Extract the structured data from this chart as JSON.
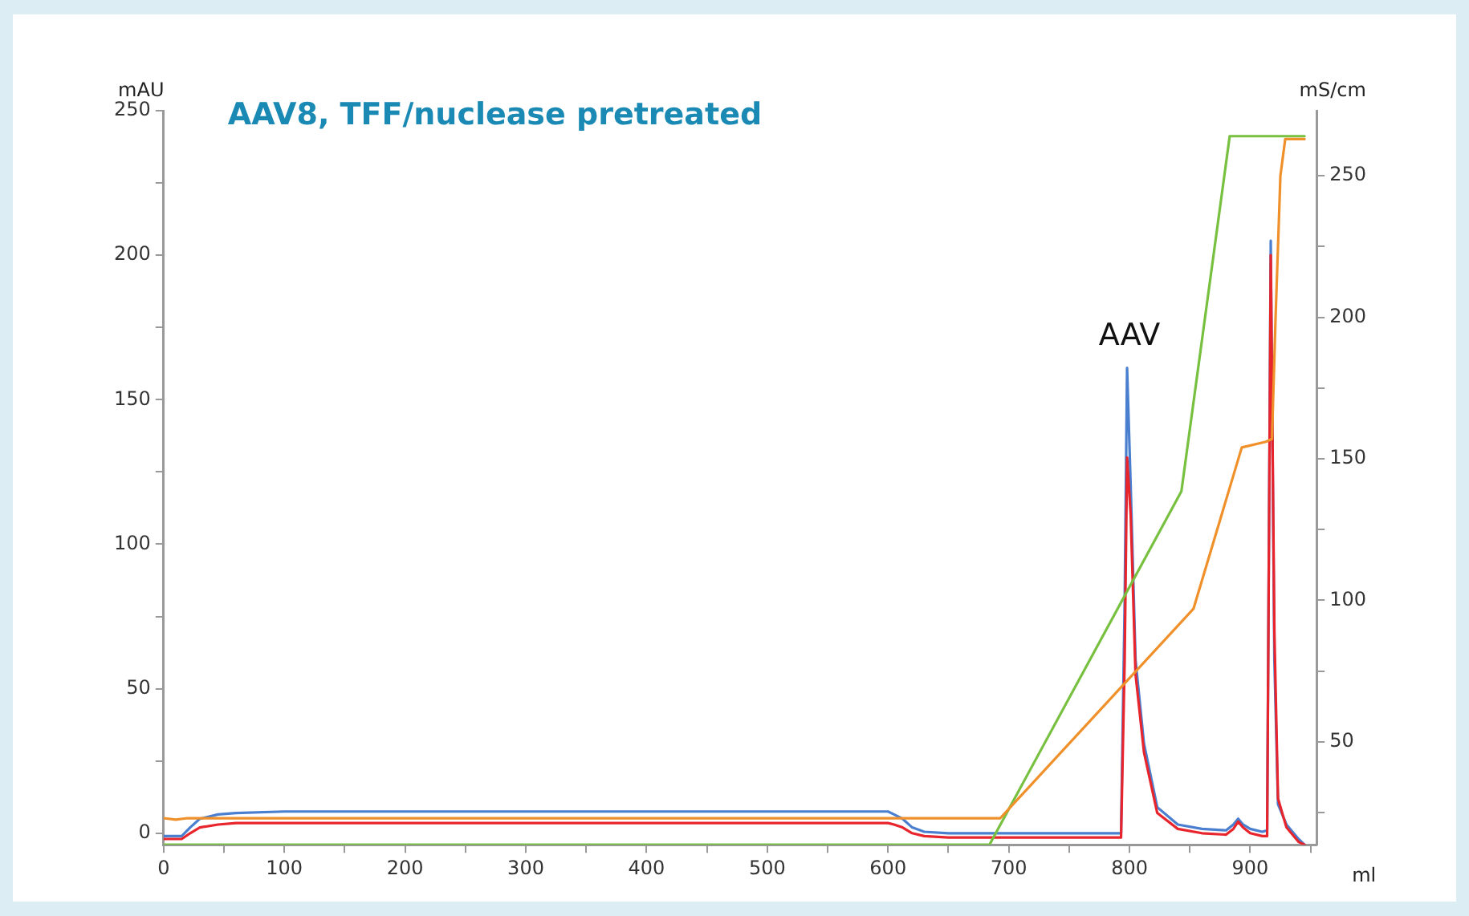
{
  "chart_data": {
    "type": "line",
    "title": "AAV8, TFF/nuclease pretreated",
    "xlabel": "ml",
    "ylabel": "mAU",
    "y2label": "mS/cm",
    "annotations": [
      {
        "text": "AAV",
        "x": 800,
        "y": 161
      }
    ],
    "xlim": [
      0,
      955
    ],
    "xticks": [
      0,
      {
        "value": 50,
        "label": null
      },
      100,
      {
        "value": 150,
        "label": null
      },
      200,
      {
        "value": 250,
        "label": null
      },
      300,
      {
        "value": 350,
        "label": null
      },
      400,
      {
        "value": 450,
        "label": null
      },
      500,
      {
        "value": 550,
        "label": null
      },
      600,
      {
        "value": 650,
        "label": null
      },
      700,
      {
        "value": 750,
        "label": null
      },
      800,
      {
        "value": 850,
        "label": null
      },
      900,
      {
        "value": 950,
        "label": null
      }
    ],
    "ylim": [
      -4,
      250
    ],
    "yticks": [
      0,
      {
        "value": 25,
        "label": null
      },
      50,
      {
        "value": 75,
        "label": null
      },
      100,
      {
        "value": 125,
        "label": null
      },
      150,
      {
        "value": 175,
        "label": null
      },
      200,
      {
        "value": 225,
        "label": null
      },
      250
    ],
    "y2lim": [
      13.6,
      273
    ],
    "y2ticks": [
      {
        "value": 25,
        "label": null
      },
      50,
      {
        "value": 75,
        "label": null
      },
      100,
      {
        "value": 125,
        "label": null
      },
      150,
      {
        "value": 175,
        "label": null
      },
      200,
      {
        "value": 225,
        "label": null
      },
      250
    ],
    "grid": false,
    "legend": false,
    "marker": "none",
    "line_style": "solid",
    "series": [
      {
        "color": "#f0902a",
        "axis": "y2",
        "x": [
          0,
          10,
          20,
          693,
          853,
          893,
          913,
          918,
          921,
          925,
          929,
          945
        ],
        "values": [
          23,
          22.5,
          23,
          23,
          97,
          154,
          156,
          157,
          200,
          250,
          263,
          263
        ]
      },
      {
        "color": "#78c040",
        "axis": "y2",
        "x": [
          0,
          684,
          843,
          883,
          945
        ],
        "values": [
          13.6,
          13.6,
          138.5,
          264,
          264
        ]
      },
      {
        "color": "#e8242c",
        "x": [
          0,
          15,
          22,
          30,
          45,
          60,
          100,
          300,
          500,
          600,
          605,
          612,
          620,
          630,
          650,
          700,
          793,
          796,
          798,
          801,
          805,
          812,
          823,
          840,
          860,
          880,
          886,
          890,
          894,
          900,
          910,
          914,
          917,
          920,
          923,
          930,
          940,
          945
        ],
        "values": [
          -2,
          -2,
          0,
          2,
          3,
          3.5,
          3.5,
          3.5,
          3.5,
          3.5,
          3,
          2,
          0,
          -1,
          -1.5,
          -1.5,
          -1.5,
          60,
          130,
          110,
          55,
          28,
          7,
          1.5,
          0,
          -0.5,
          1.5,
          4,
          2,
          0,
          -1,
          -1,
          200,
          70,
          12,
          2,
          -3,
          -4
        ]
      },
      {
        "color": "#4a7fd0",
        "x": [
          0,
          15,
          22,
          30,
          45,
          60,
          100,
          300,
          500,
          600,
          605,
          612,
          620,
          630,
          650,
          700,
          793,
          796,
          798,
          801,
          805,
          812,
          823,
          840,
          860,
          880,
          886,
          890,
          894,
          900,
          910,
          914,
          917,
          920,
          923,
          930,
          940,
          945
        ],
        "values": [
          -1,
          -1,
          2,
          5,
          6.5,
          7,
          7.5,
          7.5,
          7.5,
          7.5,
          6.5,
          5,
          2,
          0.5,
          0,
          0,
          0,
          80,
          161,
          120,
          60,
          31,
          9,
          3,
          1.5,
          1,
          3,
          5,
          3,
          1.5,
          0.5,
          1,
          205,
          60,
          10,
          3,
          -2,
          -4
        ]
      }
    ]
  }
}
